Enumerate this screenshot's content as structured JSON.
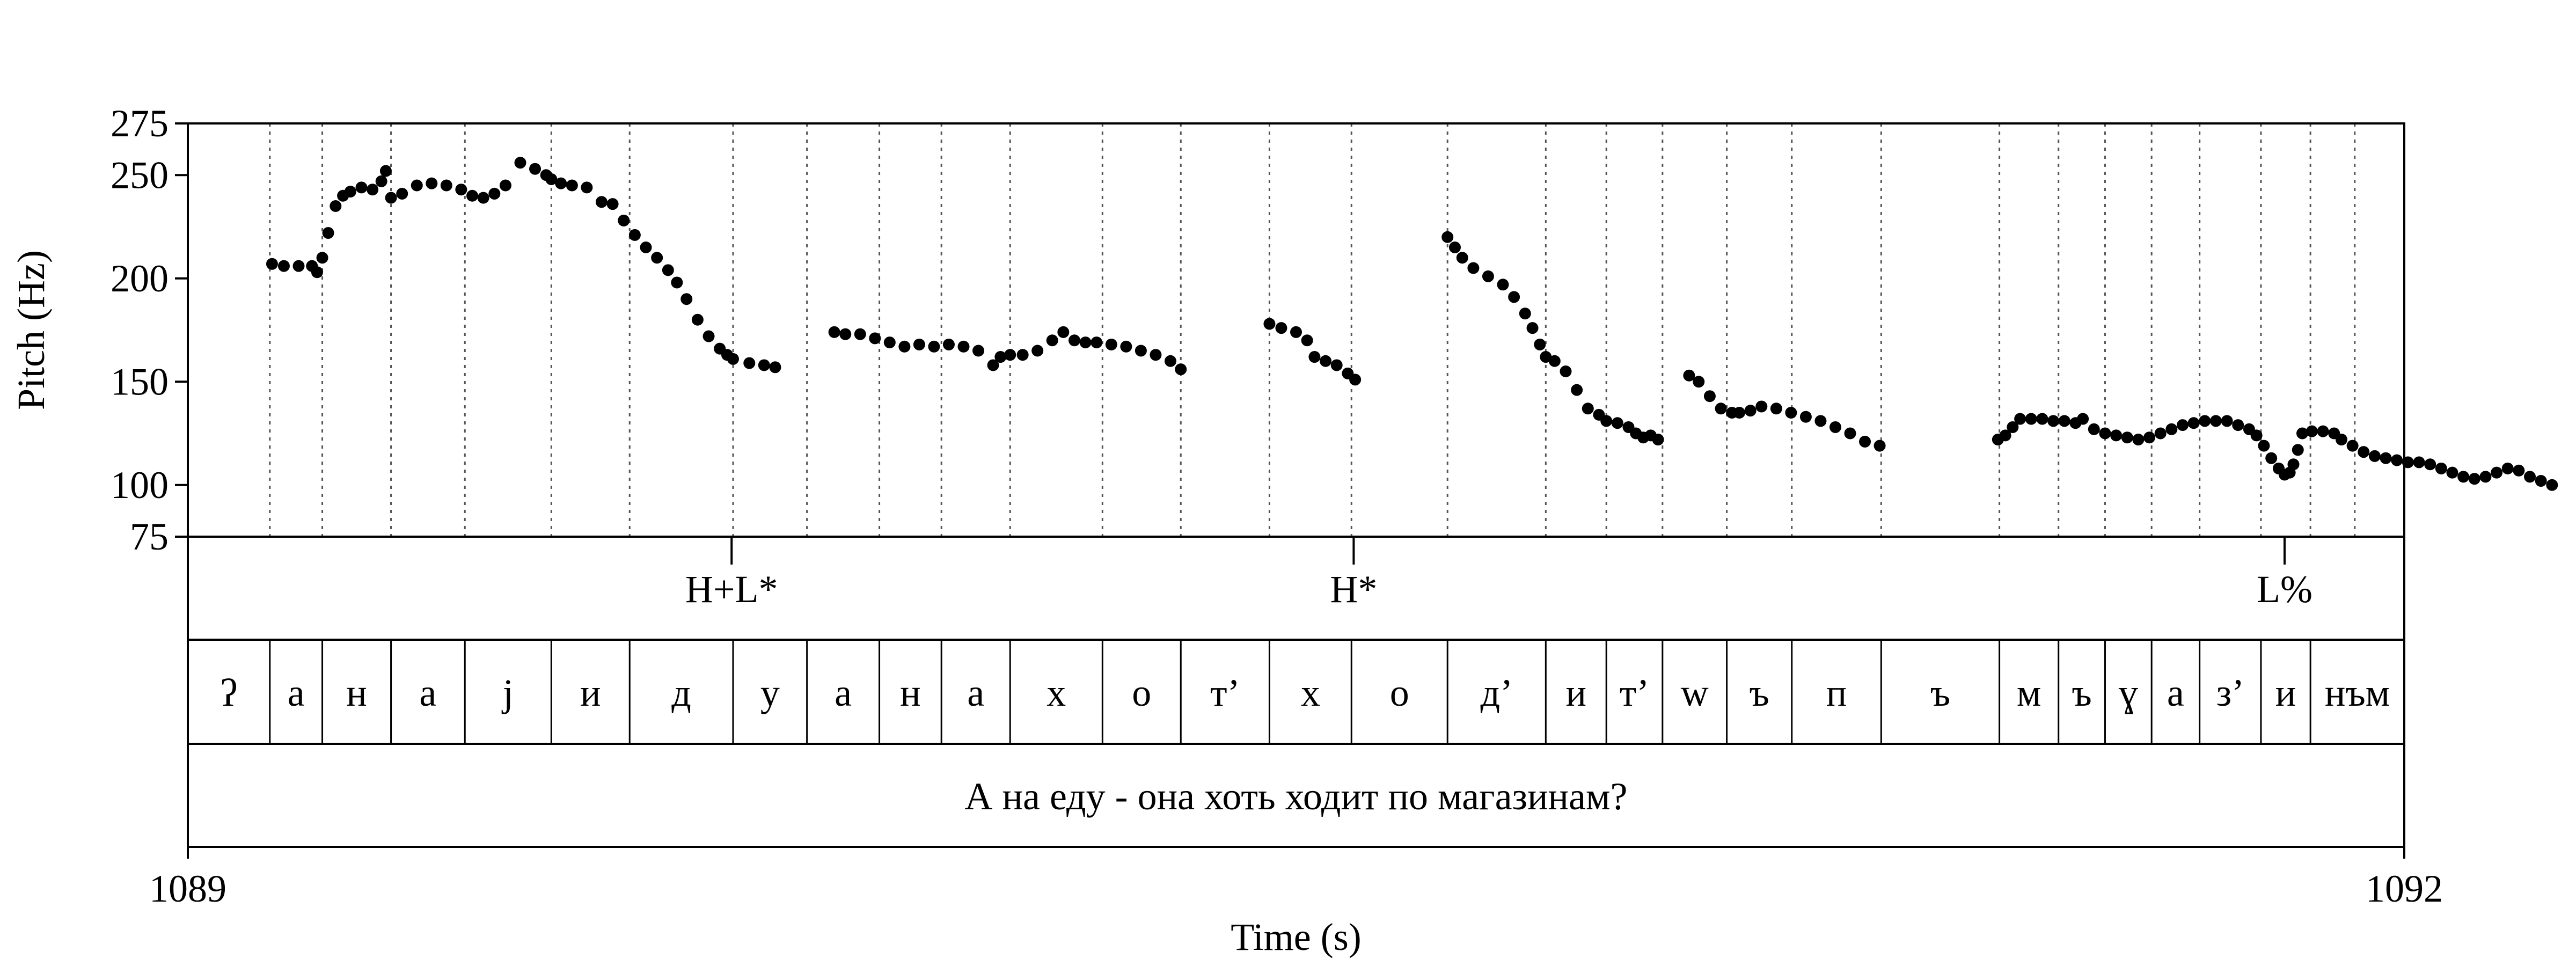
{
  "chart_data": {
    "type": "scatter",
    "title": "",
    "xlabel": "Time (s)",
    "ylabel": "Pitch (Hz)",
    "xlim": [
      1089,
      1092
    ],
    "ylim": [
      75,
      275
    ],
    "x_ticks": [
      1089,
      1092
    ],
    "y_ticks": [
      75,
      100,
      150,
      200,
      250,
      275
    ],
    "x_tick_labels": [
      "1089",
      "1092"
    ],
    "y_tick_labels": [
      "75",
      "100",
      "150",
      "200",
      "250",
      "275"
    ],
    "grid": false,
    "legend": "none",
    "colors": {
      "points": "#000000",
      "lines": "#000000",
      "boundaries": "#555555"
    },
    "segment_boundaries": [
      1089.111,
      1089.182,
      1089.275,
      1089.375,
      1089.492,
      1089.598,
      1089.738,
      1089.838,
      1089.936,
      1090.02,
      1090.113,
      1090.238,
      1090.344,
      1090.464,
      1090.575,
      1090.705,
      1090.838,
      1090.92,
      1090.996,
      1091.083,
      1091.171,
      1091.292,
      1091.452,
      1091.532,
      1091.595,
      1091.658,
      1091.723,
      1091.806,
      1091.873,
      1091.933
    ],
    "pitch_contour": [
      {
        "x": [
          1089.114,
          1089.13,
          1089.15,
          1089.168,
          1089.175,
          1089.182,
          1089.19,
          1089.2,
          1089.21,
          1089.22,
          1089.235,
          1089.25,
          1089.262,
          1089.268,
          1089.275,
          1089.29,
          1089.31,
          1089.33,
          1089.35,
          1089.37,
          1089.385,
          1089.4,
          1089.415,
          1089.43,
          1089.45,
          1089.47,
          1089.485,
          1089.492,
          1089.505,
          1089.52,
          1089.54,
          1089.56,
          1089.575,
          1089.59,
          1089.605,
          1089.62,
          1089.635,
          1089.65,
          1089.662,
          1089.675,
          1089.69,
          1089.705,
          1089.72,
          1089.73,
          1089.738,
          1089.76,
          1089.78,
          1089.795
        ],
        "y": [
          207,
          206,
          206,
          206,
          203,
          210,
          222,
          235,
          240,
          242,
          244,
          243,
          247,
          252,
          239,
          241,
          245,
          246,
          245,
          243,
          240,
          239,
          241,
          245,
          256,
          253,
          250,
          248,
          246,
          245,
          244,
          237,
          236,
          228,
          221,
          215,
          210,
          204,
          198,
          190,
          180,
          172,
          166,
          163,
          161,
          159,
          158,
          157
        ]
      },
      {
        "x": [
          1089.875,
          1089.89,
          1089.91,
          1089.93,
          1089.95,
          1089.97,
          1089.99,
          1090.01,
          1090.03,
          1090.05,
          1090.07,
          1090.09,
          1090.1,
          1090.113,
          1090.13,
          1090.15,
          1090.17,
          1090.185,
          1090.2,
          1090.215,
          1090.23,
          1090.25,
          1090.27,
          1090.29,
          1090.31,
          1090.33,
          1090.344
        ],
        "y": [
          174,
          173,
          173,
          171,
          169,
          167,
          168,
          167,
          168,
          167,
          165,
          158,
          162,
          163,
          163,
          165,
          170,
          174,
          170,
          169,
          169,
          168,
          167,
          165,
          163,
          160,
          156
        ]
      },
      {
        "x": [
          1090.464,
          1090.48,
          1090.5,
          1090.515,
          1090.525,
          1090.54,
          1090.555,
          1090.57,
          1090.58
        ],
        "y": [
          178,
          176,
          174,
          170,
          162,
          160,
          158,
          154,
          151
        ]
      },
      {
        "x": [
          1090.705,
          1090.715,
          1090.725,
          1090.74,
          1090.76,
          1090.78,
          1090.795,
          1090.81,
          1090.82,
          1090.83,
          1090.838,
          1090.85,
          1090.865,
          1090.88,
          1090.895,
          1090.91,
          1090.92,
          1090.935,
          1090.95,
          1090.96,
          1090.97,
          1090.98,
          1090.99
        ],
        "y": [
          220,
          215,
          210,
          205,
          201,
          197,
          191,
          183,
          176,
          168,
          162,
          160,
          155,
          146,
          137,
          134,
          131,
          130,
          128,
          125,
          123,
          124,
          122
        ]
      },
      {
        "x": [
          1091.032,
          1091.045,
          1091.06,
          1091.075,
          1091.09,
          1091.1,
          1091.115,
          1091.13,
          1091.15,
          1091.17,
          1091.19,
          1091.21,
          1091.23,
          1091.25,
          1091.27,
          1091.29
        ],
        "y": [
          153,
          150,
          143,
          137,
          135,
          135,
          136,
          138,
          137,
          135,
          133,
          131,
          128,
          125,
          121,
          119
        ]
      },
      {
        "x": [
          1091.45,
          1091.46,
          1091.47,
          1091.48,
          1091.495,
          1091.51,
          1091.525,
          1091.54,
          1091.555,
          1091.565,
          1091.58,
          1091.595,
          1091.61,
          1091.625,
          1091.64,
          1091.655,
          1091.67,
          1091.685,
          1091.7,
          1091.715,
          1091.73,
          1091.745,
          1091.76,
          1091.775,
          1091.79,
          1091.8,
          1091.81,
          1091.82,
          1091.83,
          1091.838,
          1091.845,
          1091.85,
          1091.856
        ],
        "y": [
          122,
          124,
          128,
          132,
          132,
          132,
          131,
          131,
          130,
          132,
          127,
          125,
          124,
          123,
          122,
          123,
          125,
          127,
          129,
          130,
          131,
          131,
          131,
          129,
          127,
          124,
          119,
          113,
          108,
          105,
          106,
          110,
          117
        ]
      },
      {
        "x": [
          1091.862,
          1091.875,
          1091.89,
          1091.905,
          1091.915,
          1091.93,
          1091.945,
          1091.96,
          1091.975,
          1091.99,
          1092.005,
          1092.02,
          1092.035,
          1092.05,
          1092.065,
          1092.08,
          1092.095,
          1092.11,
          1092.125,
          1092.14,
          1092.155,
          1092.17,
          1092.185,
          1092.2
        ],
        "y": [
          125,
          126,
          126,
          125,
          122,
          119,
          116,
          114,
          113,
          112,
          111,
          111,
          110,
          108,
          106,
          104,
          103,
          104,
          106,
          108,
          107,
          104,
          102,
          100
        ]
      }
    ],
    "tones": [
      {
        "label": "H+L*",
        "x": 1089.736
      },
      {
        "label": "H*",
        "x": 1090.578
      },
      {
        "label": "L%",
        "x": 1091.838
      }
    ],
    "segments": [
      {
        "label": "ʔ",
        "start": 1089.0,
        "end": 1089.111
      },
      {
        "label": "а",
        "start": 1089.111,
        "end": 1089.182
      },
      {
        "label": "н",
        "start": 1089.182,
        "end": 1089.275
      },
      {
        "label": "а",
        "start": 1089.275,
        "end": 1089.375
      },
      {
        "label": "j",
        "start": 1089.375,
        "end": 1089.492
      },
      {
        "label": "и",
        "start": 1089.492,
        "end": 1089.598
      },
      {
        "label": "д",
        "start": 1089.598,
        "end": 1089.738
      },
      {
        "label": "у",
        "start": 1089.738,
        "end": 1089.838
      },
      {
        "label": "а",
        "start": 1089.838,
        "end": 1089.936
      },
      {
        "label": "н",
        "start": 1089.936,
        "end": 1090.02
      },
      {
        "label": "а",
        "start": 1090.02,
        "end": 1090.113
      },
      {
        "label": "х",
        "start": 1090.113,
        "end": 1090.238
      },
      {
        "label": "о",
        "start": 1090.238,
        "end": 1090.344
      },
      {
        "label": "т’",
        "start": 1090.344,
        "end": 1090.464
      },
      {
        "label": "х",
        "start": 1090.464,
        "end": 1090.575
      },
      {
        "label": "о",
        "start": 1090.575,
        "end": 1090.705
      },
      {
        "label": "д’",
        "start": 1090.705,
        "end": 1090.838
      },
      {
        "label": "и",
        "start": 1090.838,
        "end": 1090.92
      },
      {
        "label": "т’",
        "start": 1090.92,
        "end": 1090.996
      },
      {
        "label": "w",
        "start": 1090.996,
        "end": 1091.083
      },
      {
        "label": "ъ",
        "start": 1091.083,
        "end": 1091.171
      },
      {
        "label": "п",
        "start": 1091.171,
        "end": 1091.292
      },
      {
        "label": "ъ",
        "start": 1091.292,
        "end": 1091.452
      },
      {
        "label": "м",
        "start": 1091.452,
        "end": 1091.532
      },
      {
        "label": "ъ",
        "start": 1091.532,
        "end": 1091.595
      },
      {
        "label": "ɣ",
        "start": 1091.595,
        "end": 1091.658
      },
      {
        "label": "а",
        "start": 1091.658,
        "end": 1091.723
      },
      {
        "label": "з’",
        "start": 1091.723,
        "end": 1091.806
      },
      {
        "label": "и",
        "start": 1091.806,
        "end": 1091.873
      },
      {
        "label": "нъм",
        "start": 1091.873,
        "end": 1092.0
      }
    ],
    "sentence": "А на еду - она хоть ходит по магазинам?"
  }
}
